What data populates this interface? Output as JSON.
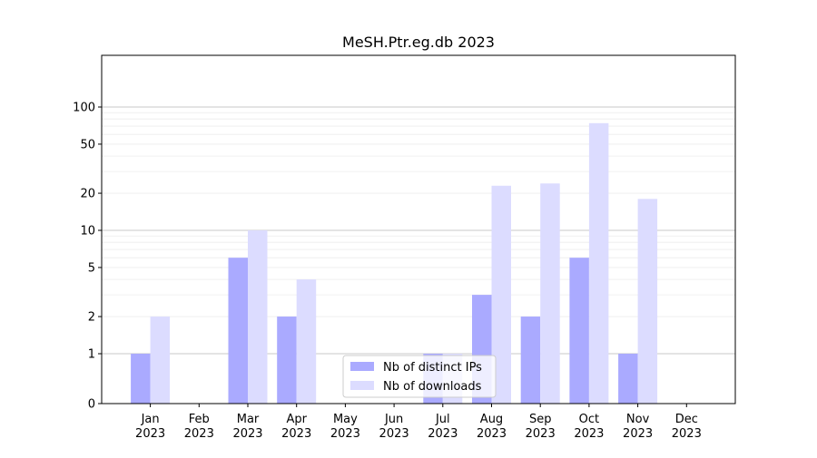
{
  "chart_data": {
    "type": "bar",
    "title": "MeSH.Ptr.eg.db 2023",
    "xlabel": "",
    "ylabel": "",
    "yscale": "symlog",
    "ylim": [
      0,
      120
    ],
    "yticks": [
      {
        "value": 0,
        "label": "0"
      },
      {
        "value": 1,
        "label": "1"
      },
      {
        "value": 2,
        "label": "2"
      },
      {
        "value": 5,
        "label": "5"
      },
      {
        "value": 10,
        "label": "10"
      },
      {
        "value": 20,
        "label": "20"
      },
      {
        "value": 50,
        "label": "50"
      },
      {
        "value": 100,
        "label": "100"
      }
    ],
    "grid": true,
    "legend_position": "bottom-center",
    "categories": [
      {
        "month": "Jan",
        "year": "2023"
      },
      {
        "month": "Feb",
        "year": "2023"
      },
      {
        "month": "Mar",
        "year": "2023"
      },
      {
        "month": "Apr",
        "year": "2023"
      },
      {
        "month": "May",
        "year": "2023"
      },
      {
        "month": "Jun",
        "year": "2023"
      },
      {
        "month": "Jul",
        "year": "2023"
      },
      {
        "month": "Aug",
        "year": "2023"
      },
      {
        "month": "Sep",
        "year": "2023"
      },
      {
        "month": "Oct",
        "year": "2023"
      },
      {
        "month": "Nov",
        "year": "2023"
      },
      {
        "month": "Dec",
        "year": "2023"
      }
    ],
    "series": [
      {
        "name": "Nb of distinct IPs",
        "color": "#aaaaff",
        "values": [
          1,
          0,
          6,
          2,
          0,
          0,
          1,
          3,
          2,
          6,
          1,
          0
        ]
      },
      {
        "name": "Nb of downloads",
        "color": "#dcdcff",
        "values": [
          2,
          0,
          10,
          4,
          0,
          0,
          1,
          23,
          24,
          74,
          18,
          0
        ]
      }
    ]
  }
}
